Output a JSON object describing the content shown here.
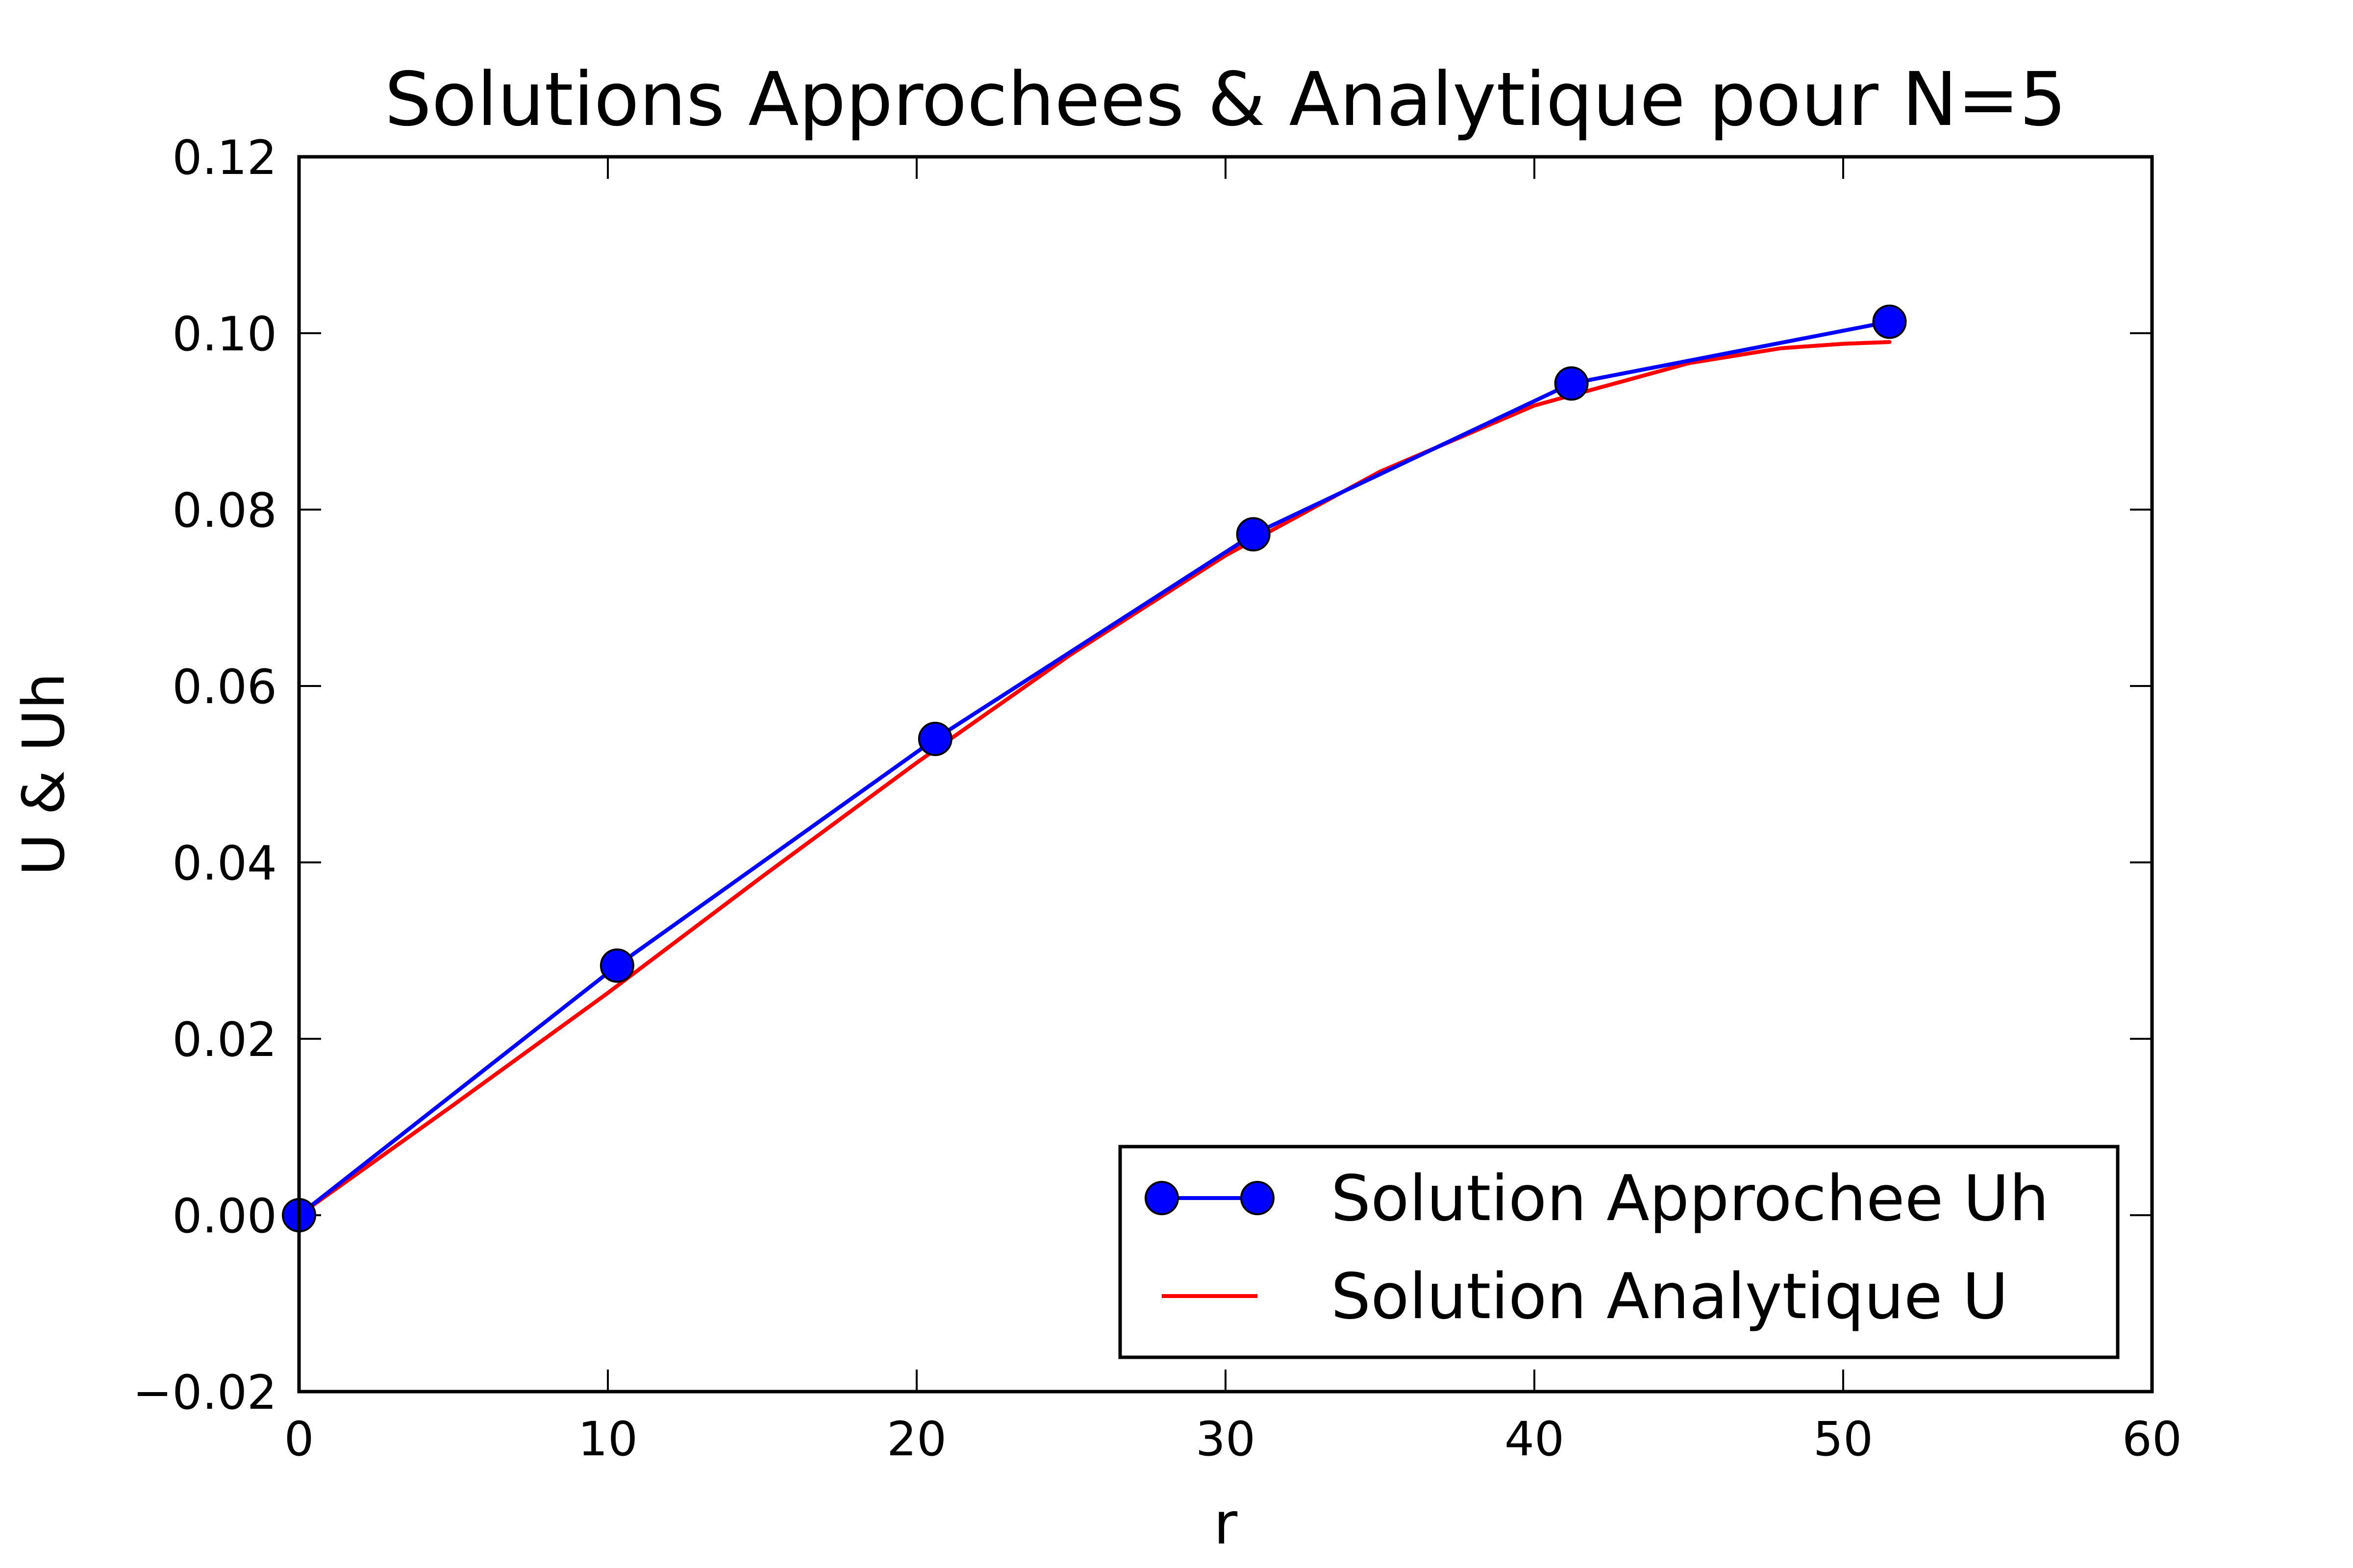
{
  "chart_data": {
    "type": "line",
    "title": "Solutions Approchees & Analytique pour N=5",
    "xlabel": "r",
    "ylabel": "U & Uh",
    "xlim": [
      0,
      60
    ],
    "ylim": [
      -0.02,
      0.12
    ],
    "x_ticks": [
      0,
      10,
      20,
      30,
      40,
      50,
      60
    ],
    "x_tick_labels": [
      "0",
      "10",
      "20",
      "30",
      "40",
      "50",
      "60"
    ],
    "y_ticks": [
      -0.02,
      0.0,
      0.02,
      0.04,
      0.06,
      0.08,
      0.1,
      0.12
    ],
    "y_tick_labels": [
      "−0.02",
      "0.00",
      "0.02",
      "0.04",
      "0.06",
      "0.08",
      "0.10",
      "0.12"
    ],
    "grid": false,
    "legend_position": "lower-right",
    "series": [
      {
        "name": "Solution Approchee Uh",
        "color": "#0000ff",
        "marker": "circle",
        "x": [
          0,
          10.3,
          20.6,
          30.9,
          41.2,
          51.5
        ],
        "y": [
          0.0,
          0.0283,
          0.054,
          0.0772,
          0.0943,
          0.1013
        ]
      },
      {
        "name": "Solution Analytique U",
        "color": "#ff0000",
        "marker": "none",
        "x": [
          0,
          5,
          10,
          15,
          20,
          25,
          30,
          35,
          40,
          45,
          48,
          50,
          51.5
        ],
        "y": [
          0.0,
          0.0125,
          0.0252,
          0.0384,
          0.0513,
          0.0636,
          0.0748,
          0.0843,
          0.0918,
          0.0966,
          0.0983,
          0.0988,
          0.099
        ]
      }
    ]
  }
}
